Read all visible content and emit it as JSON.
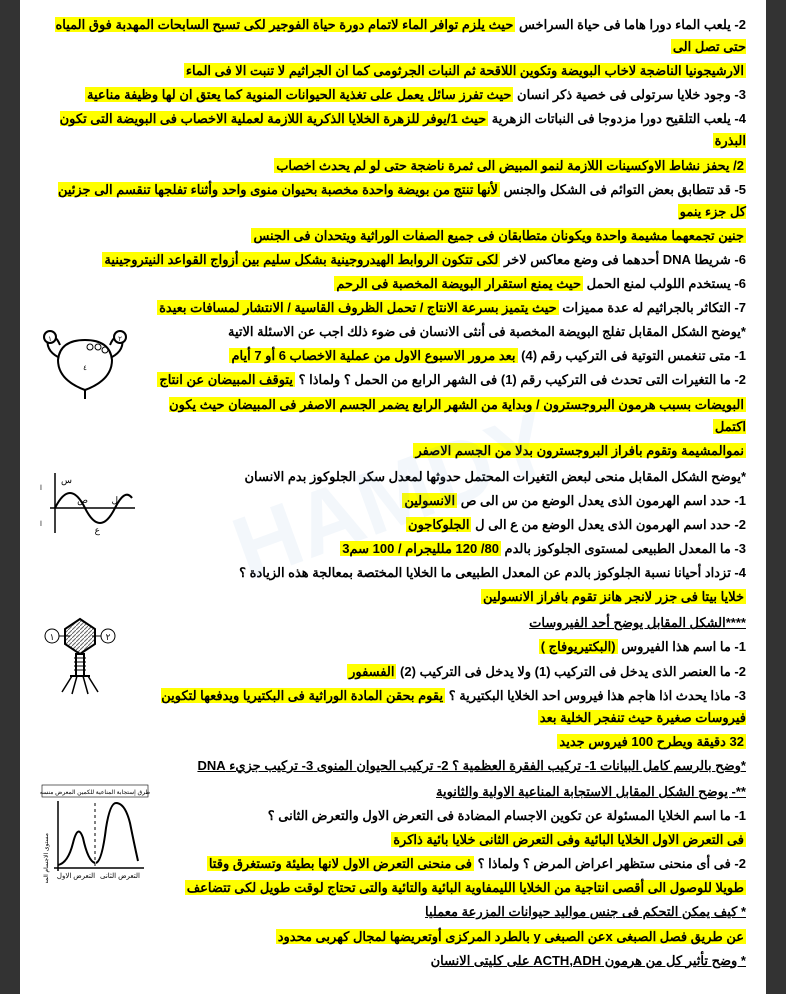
{
  "lines": [
    {
      "pre": "2- يلعب الماء دورا هاما فى حياة السراخس ",
      "hl": "حيث يلزم توافر الماء لاتمام دورة حياة الفوجير لكى تسبح السابحات المهدبة فوق المياه حتى تصل الى"
    },
    {
      "hl": "الارشيجونيا الناضجة لاخاب البويضة وتكوين اللاقحة ثم النبات الجرثومى كما ان الجراثيم لا تنبت الا فى الماء"
    },
    {
      "pre": "3- وجود خلايا سرتولى فى خصية ذكر انسان ",
      "hl": "حيث تفرز سائل يعمل على تغذية الحيوانات المنوية كما يعتق ان لها وظيفة مناعية"
    },
    {
      "pre": "4- يلعب التلقيح دورا مزدوجا فى النباتات الزهرية ",
      "hl": "حيث 1/يوفر للزهرة الخلايا الذكرية اللازمة لعملية الاخصاب فى البويضة التى تكون البذرة"
    },
    {
      "hl": "2/ يحفز نشاط الاوكسينات اللازمة لنمو المبيض الى ثمرة ناضجة حتى لو لم يحدث اخصاب"
    },
    {
      "pre": "5- قد تتطابق بعض التوائم فى الشكل والجنس ",
      "hl": "لأنها تنتج من بويضة واحدة مخصبة بحيوان منوى واحد وأثناء تفلجها تنقسم الى جزئين كل جزء ينمو"
    },
    {
      "hl": "جنين تجمعهما مشيمة واحدة ويكونان متطابقان فى جميع الصفات الوراثية ويتحدان فى الجنس"
    },
    {
      "pre": "6- شريطا DNA أحدهما فى وضع معاكس لاخر ",
      "hl": "لكى تتكون الروابط الهيدروجينية بشكل سليم بين أزواج القواعد النيتروجينية"
    },
    {
      "pre": "6- يستخدم اللولب لمنع الحمل    ",
      "hl": "حيث يمنع استقرار البويضة المخصبة فى الرحم"
    },
    {
      "pre": "7- التكاثر بالجراثيم له عدة مميزات ",
      "hl": "حيث يتميز بسرعة الانتاج / تحمل الظروف القاسية / الانتشار لمسافات بعيدة"
    },
    {
      "pre": "*يوضح الشكل المقابل تفلج البويضة المخصبة فى أنثى الانسان فى ضوء ذلك اجب عن الاسئلة الاتية"
    },
    {
      "pre": "1- متى تنغمس التوتية فى التركيب رقم (4) ",
      "hl": "بعد مرور الاسبوع الاول من عملية الاخصاب 6 أو 7 أيام"
    },
    {
      "pre": "2- ما التغيرات التى تحدث فى التركيب رقم (1) فى الشهر الرابع من الحمل ؟ ولماذا ؟ ",
      "hl": "يتوقف المبيضان عن انتاج"
    },
    {
      "hl": "البويضات بسبب هرمون البروجسترون / وبداية من الشهر الرابع يضمر الجسم الاصفر فى المبيضان حيث يكون اكتمل"
    },
    {
      "hl": "نموالمشيمة وتقوم بافراز البروجسترون بدلا من الجسم الاصفر"
    },
    {
      "pre": "*يوضح الشكل المقابل منحى لبعض التغيرات المحتمل حدوثها لمعدل سكر الجلوكوز بدم الانسان"
    },
    {
      "pre": "1- حدد اسم الهرمون الذى يعدل الوضع من س الى ص ",
      "hl": "الانسولين"
    },
    {
      "pre": "2- حدد اسم الهرمون الذى يعدل الوضع من ع الى ل ",
      "hl": "الجلوكاجون"
    },
    {
      "pre": "3- ما المعدل الطبيعى لمستوى الجلوكوز بالدم ",
      "hl": "80/ 120 ملليجرام / 100 سم3"
    },
    {
      "pre": "4- تزداد أحيانا نسبة الجلوكوز بالدم عن المعدل الطبيعى ما الخلايا المختصة بمعالجة هذه الزيادة ؟"
    },
    {
      "hl": "خلايا بيتا فى جزر لانجر هانز تقوم بافراز الانسولين"
    },
    {
      "pre": "",
      "hl": "",
      "uline": "****الشكل المقابل يوضح أحد الفيروسات"
    },
    {
      "pre": "1- ما اسم هذا الفيروس ",
      "hl": "(البكتيريوفاج )"
    },
    {
      "pre": "2- ما العنصر الذى يدخل فى التركيب (1) ولا يدخل فى التركيب (2) ",
      "hl": "الفسفور"
    },
    {
      "pre": "3- ماذا يحدث اذا هاجم هذا فيروس احد الخلايا البكتيرية ؟ ",
      "hl": "يقوم بحقن المادة الوراثية فى البكتيريا ويدفعها لتكوين فيروسات صغيرة حيث تنفجر الخلية بعد"
    },
    {
      "hl": "32 دقيقة ويطرح 100 فيروس جديد"
    },
    {
      "uline": "*وضح بالرسم كامل البيانات 1- تركيب الفقرة العظمية ؟    2- تركيب الحيوان المنوى    3- تركيب جزيء DNA"
    },
    {
      "uline": "**- يوضح الشكل المقابل الاستجابة المناعية الاولية والثانوية"
    },
    {
      "pre": "1- ما اسم الخلايا المسئولة عن تكوين الاجسام المضادة فى التعرض الاول والتعرض الثانى ؟"
    },
    {
      "hl": "فى التعرض الاول الخلايا البائية  وفى التعرض الثانى خلايا بائية ذاكرة"
    },
    {
      "pre": "2- فى أى منحنى ستظهر اعراض المرض ؟ ولماذا ؟ ",
      "hl": "فى منحنى التعرض الاول لانها بطيئة وتستغرق وقتا"
    },
    {
      "hl": "طويلا للوصول الى أقصى انتاجية من الخلايا الليمفاوية البائية والتائية والتى تحتاج لوقت طويل لكى تتضاعف"
    },
    {
      "uline": "* كيف يمكن التحكم فى جنس مواليد حيوانات المزرعة معمليا"
    },
    {
      "hl": "عن طريق فصل الصبغى  xعن الصبغى y بالطرد المركزى أوتعريضها لمجال كهربى محدود"
    },
    {
      "uline": "* وضح تأثير كل من هرمون ACTH,ADH على كليتى الانسان"
    }
  ]
}
